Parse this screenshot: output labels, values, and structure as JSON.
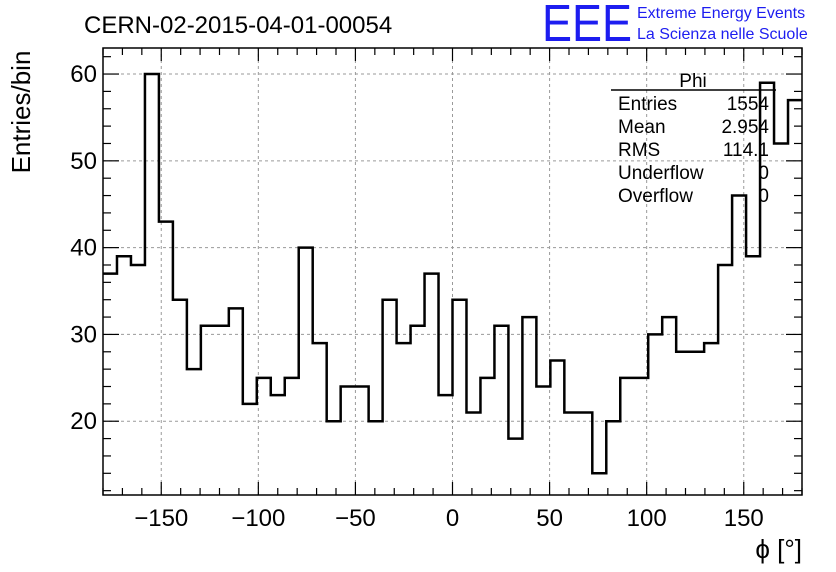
{
  "chart_data": {
    "type": "histogram",
    "title": "CERN-02-2015-04-01-00054",
    "xlabel": "ϕ [°]",
    "ylabel": "Entries/bin",
    "xlim": [
      -180,
      180
    ],
    "ylim": [
      11.5,
      63
    ],
    "xticks": [
      -150,
      -100,
      -50,
      0,
      50,
      100,
      150
    ],
    "yticks": [
      20,
      30,
      40,
      50,
      60
    ],
    "grid": true,
    "bin_width": 7.2,
    "bin_edges_start": -180,
    "values": [
      37,
      39,
      38,
      60,
      43,
      34,
      26,
      31,
      31,
      33,
      22,
      25,
      23,
      25,
      40,
      29,
      20,
      24,
      24,
      20,
      34,
      29,
      31,
      37,
      23,
      34,
      21,
      25,
      31,
      18,
      32,
      24,
      27,
      21,
      21,
      14,
      20,
      25,
      25,
      30,
      32,
      28,
      28,
      29,
      38,
      46,
      39,
      59,
      52,
      57
    ],
    "stats": {
      "name": "Phi",
      "rows": [
        {
          "label": "Entries",
          "value": "1554"
        },
        {
          "label": "Mean",
          "value": "2.954"
        },
        {
          "label": "RMS",
          "value": "114.1"
        },
        {
          "label": "Underflow",
          "value": "0"
        },
        {
          "label": "Overflow",
          "value": "0"
        }
      ]
    }
  },
  "logo": {
    "big": "EEE",
    "line1": "Extreme Energy Events",
    "line2": "La Scienza nelle Scuole",
    "color": "#1d1df0"
  }
}
